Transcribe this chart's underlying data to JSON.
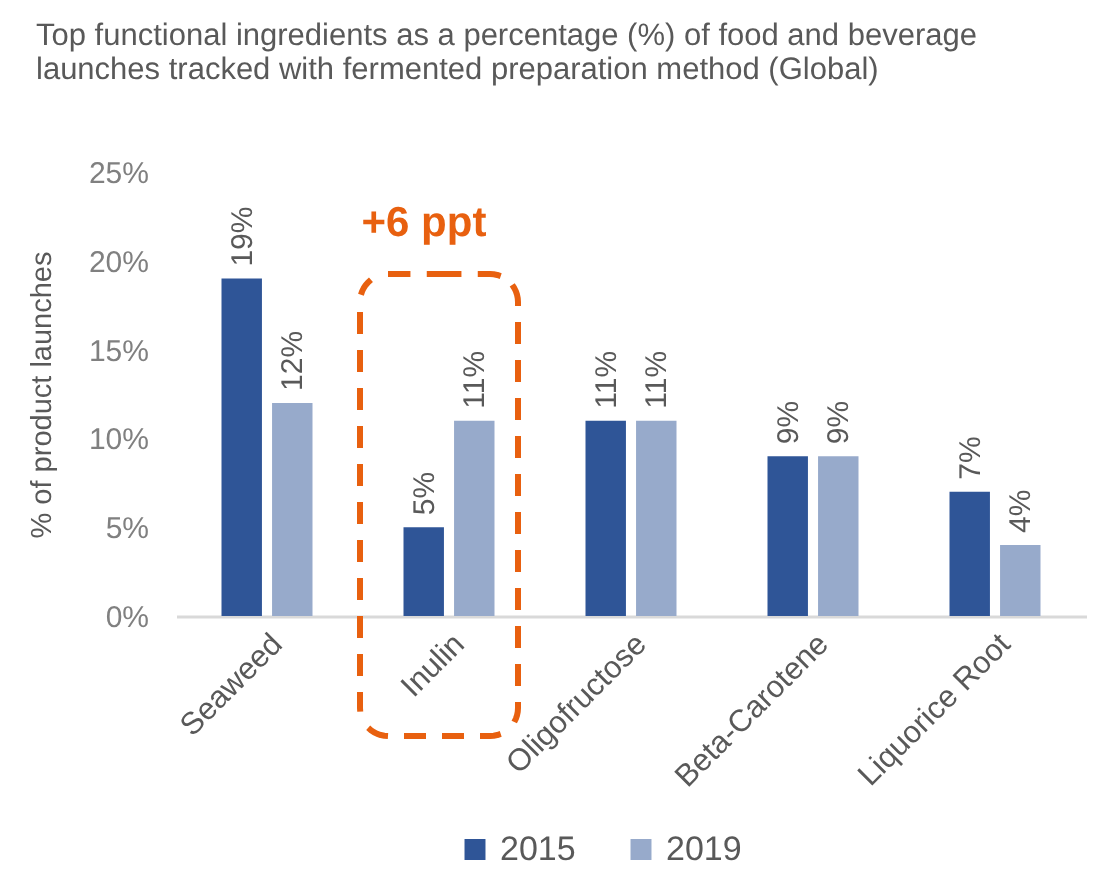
{
  "chart_data": {
    "type": "bar",
    "title": "Top functional ingredients as a percentage (%) of food and beverage launches tracked with fermented preparation method (Global)",
    "ylabel": "% of product launches",
    "categories": [
      "Seaweed",
      "Inulin",
      "Oligofructose",
      "Beta-Carotene",
      "Liquorice Root"
    ],
    "series": [
      {
        "name": "2015",
        "color": "#2f5597",
        "values": [
          19,
          5,
          11,
          9,
          7
        ],
        "value_labels": [
          "19%",
          "5%",
          "11%",
          "9%",
          "7%"
        ]
      },
      {
        "name": "2019",
        "color": "#97aacb",
        "values": [
          12,
          11,
          11,
          9,
          4
        ],
        "value_labels": [
          "12%",
          "11%",
          "11%",
          "9%",
          "4%"
        ]
      }
    ],
    "ylim": [
      0,
      25
    ],
    "yticks": [
      {
        "value": 0,
        "label": "0%"
      },
      {
        "value": 5,
        "label": "5%"
      },
      {
        "value": 10,
        "label": "10%"
      },
      {
        "value": 15,
        "label": "15%"
      },
      {
        "value": 20,
        "label": "20%"
      },
      {
        "value": 25,
        "label": "25%"
      }
    ],
    "legend": "bottom",
    "annotations": [
      "+6 ppt"
    ]
  }
}
